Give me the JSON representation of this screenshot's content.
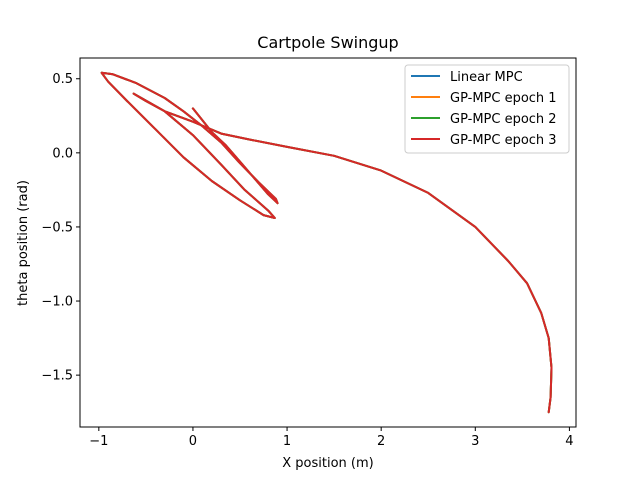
{
  "chart_data": {
    "type": "line",
    "title": "Cartpole Swingup",
    "xlabel": "X position (m)",
    "ylabel": "theta position (rad)",
    "xlim": [
      -1.2,
      4.07
    ],
    "ylim": [
      -1.85,
      0.64
    ],
    "xticks": [
      -1,
      0,
      1,
      2,
      3,
      4
    ],
    "xtick_labels": [
      "−1",
      "0",
      "1",
      "2",
      "3",
      "4"
    ],
    "yticks": [
      0.5,
      0.0,
      -0.5,
      -1.0,
      -1.5
    ],
    "ytick_labels": [
      "0.5",
      "0.0",
      "−0.5",
      "−1.0",
      "−1.5"
    ],
    "grid": false,
    "legend_position": "top-right",
    "trajectory": [
      [
        0.0,
        0.3
      ],
      [
        0.1,
        0.22
      ],
      [
        0.2,
        0.14
      ],
      [
        0.35,
        0.05
      ],
      [
        0.5,
        -0.06
      ],
      [
        0.65,
        -0.17
      ],
      [
        0.8,
        -0.28
      ],
      [
        0.9,
        -0.34
      ],
      [
        0.88,
        -0.31
      ],
      [
        0.7,
        -0.2
      ],
      [
        0.5,
        -0.07
      ],
      [
        0.3,
        0.07
      ],
      [
        0.1,
        0.18
      ],
      [
        -0.1,
        0.28
      ],
      [
        -0.3,
        0.37
      ],
      [
        -0.6,
        0.47
      ],
      [
        -0.85,
        0.53
      ],
      [
        -0.97,
        0.54
      ],
      [
        -0.9,
        0.48
      ],
      [
        -0.7,
        0.35
      ],
      [
        -0.4,
        0.16
      ],
      [
        -0.1,
        -0.03
      ],
      [
        0.2,
        -0.19
      ],
      [
        0.5,
        -0.32
      ],
      [
        0.75,
        -0.42
      ],
      [
        0.87,
        -0.44
      ],
      [
        0.8,
        -0.39
      ],
      [
        0.55,
        -0.25
      ],
      [
        0.3,
        -0.08
      ],
      [
        0.0,
        0.12
      ],
      [
        -0.3,
        0.28
      ],
      [
        -0.63,
        0.4
      ],
      [
        -0.5,
        0.35
      ],
      [
        -0.3,
        0.28
      ],
      [
        0.0,
        0.21
      ],
      [
        0.3,
        0.13
      ],
      [
        0.6,
        0.09
      ],
      [
        1.0,
        0.04
      ],
      [
        1.5,
        -0.02
      ],
      [
        2.0,
        -0.12
      ],
      [
        2.5,
        -0.27
      ],
      [
        3.0,
        -0.5
      ],
      [
        3.35,
        -0.73
      ],
      [
        3.55,
        -0.88
      ],
      [
        3.7,
        -1.08
      ],
      [
        3.78,
        -1.25
      ],
      [
        3.81,
        -1.45
      ],
      [
        3.8,
        -1.65
      ],
      [
        3.78,
        -1.75
      ]
    ],
    "series": [
      {
        "name": "Linear MPC",
        "color": "#1f77b4"
      },
      {
        "name": "GP-MPC epoch 1",
        "color": "#ff7f0e"
      },
      {
        "name": "GP-MPC epoch 2",
        "color": "#2ca02c"
      },
      {
        "name": "GP-MPC epoch 3",
        "color": "#d62728"
      }
    ]
  }
}
